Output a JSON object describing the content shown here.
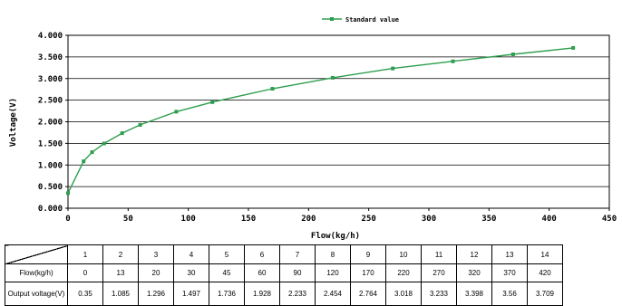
{
  "chart_data": {
    "type": "line",
    "title": "",
    "xlabel": "Flow(kg/h)",
    "ylabel": "Voltage(V)",
    "xlim": [
      0,
      450
    ],
    "ylim": [
      0,
      4
    ],
    "x_ticks": [
      "0",
      "50",
      "100",
      "150",
      "200",
      "250",
      "300",
      "350",
      "400",
      "450"
    ],
    "y_ticks": [
      "0.000",
      "0.500",
      "1.000",
      "1.500",
      "2.000",
      "2.500",
      "3.000",
      "3.500",
      "4.000"
    ],
    "grid": "horizontal",
    "legend_position": "top",
    "series": [
      {
        "name": "Standard value",
        "color": "#2e9e4e",
        "marker": "square",
        "x": [
          0,
          13,
          20,
          30,
          45,
          60,
          90,
          120,
          170,
          220,
          270,
          320,
          370,
          420
        ],
        "y": [
          0.35,
          1.085,
          1.296,
          1.497,
          1.736,
          1.928,
          2.233,
          2.454,
          2.764,
          3.018,
          3.233,
          3.398,
          3.56,
          3.709
        ]
      }
    ]
  },
  "table": {
    "index_row": [
      "1",
      "2",
      "3",
      "4",
      "5",
      "6",
      "7",
      "8",
      "9",
      "10",
      "11",
      "12",
      "13",
      "14"
    ],
    "flow_label": "Flow(kg/h)",
    "flow_values": [
      "0",
      "13",
      "20",
      "30",
      "45",
      "60",
      "90",
      "120",
      "170",
      "220",
      "270",
      "320",
      "370",
      "420"
    ],
    "voltage_label": "Output voltage(V)",
    "voltage_values": [
      "0.35",
      "1.085",
      "1.296",
      "1.497",
      "1.736",
      "1.928",
      "2.233",
      "2.454",
      "2.764",
      "3.018",
      "3.233",
      "3.398",
      "3.56",
      "3.709"
    ]
  }
}
